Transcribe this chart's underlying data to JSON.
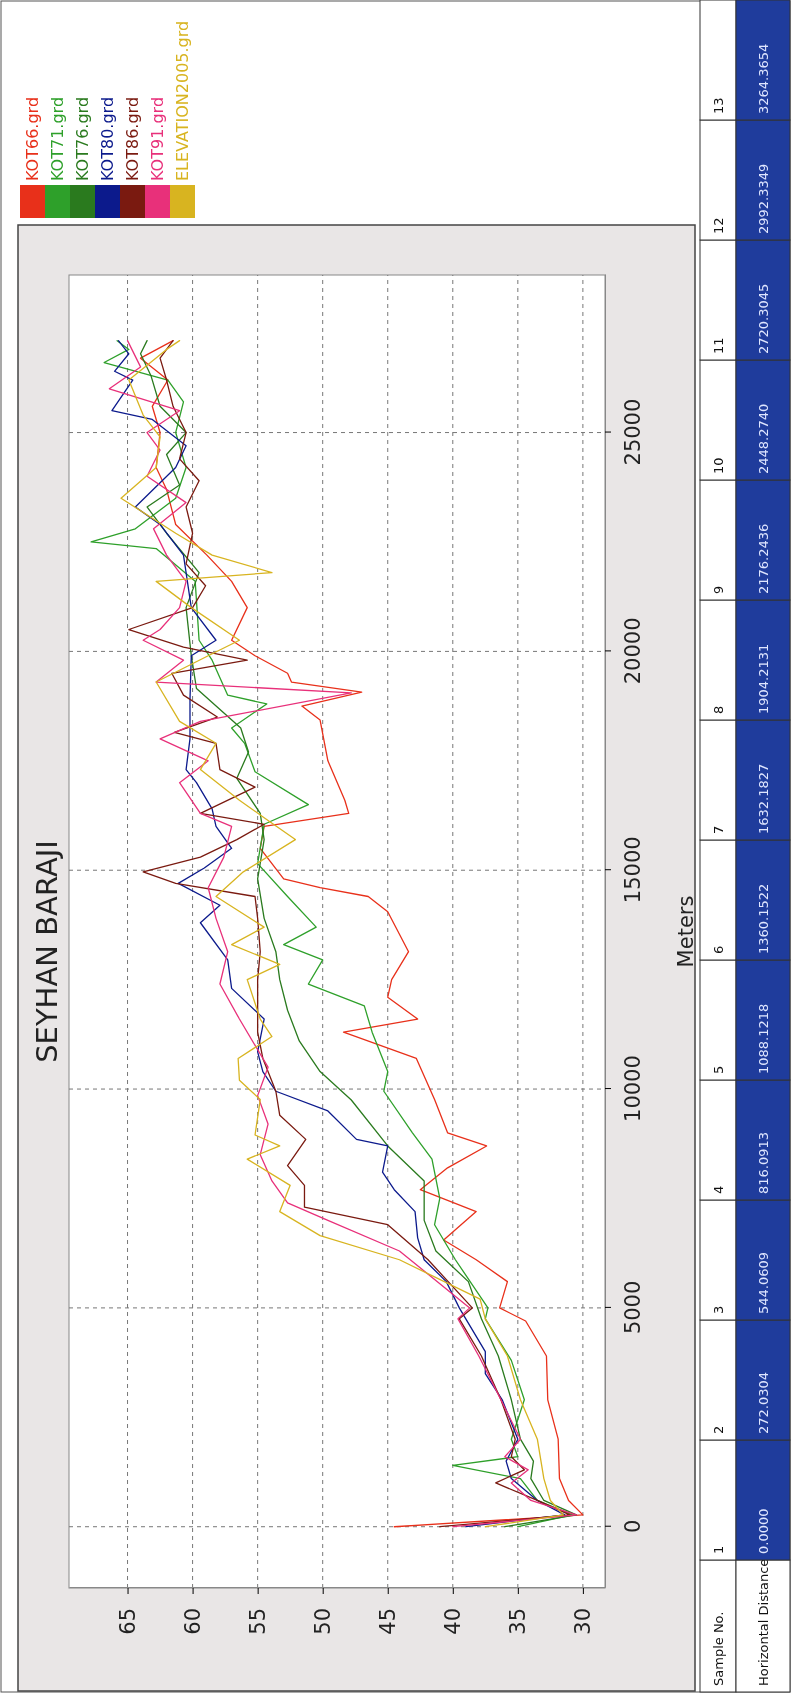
{
  "chart_data": {
    "type": "line",
    "title": "SEYHAN BARAJI",
    "ylabel": "Meters",
    "xlim": [
      69.5,
      28.3
    ],
    "ylim": [
      -1400,
      28600
    ],
    "xticks": [
      65,
      60,
      55,
      50,
      45,
      40,
      35,
      30
    ],
    "yticks": [
      0,
      5000,
      10000,
      15000,
      20000,
      25000
    ],
    "grid": true,
    "legend": "top left",
    "marker": "none",
    "line_style": "solid",
    "series": [
      {
        "name": "KOT66.grd",
        "color": "#e8301a",
        "values": [
          0,
          270,
          600,
          1100,
          2000,
          2900,
          3900,
          4700,
          5000,
          5600,
          6100,
          6550,
          7200,
          7700,
          8200,
          8700,
          9000,
          9760,
          10700,
          11300,
          11600,
          12100,
          12500,
          13139,
          14051,
          14400,
          14600,
          14800,
          15500,
          16000,
          16300,
          16600,
          17500,
          18430,
          18750,
          19070,
          19300,
          19500,
          19900,
          20255,
          21000,
          21600,
          22200,
          22900,
          23700,
          24200,
          25000,
          25600,
          26200,
          26700,
          27100
        ],
        "x": [
          44.5,
          30,
          31.1,
          31.8,
          31.9,
          32.7,
          32.8,
          34.4,
          36.4,
          35.8,
          38.2,
          40.7,
          38.2,
          42.5,
          40.4,
          37.4,
          40.4,
          41.4,
          42.8,
          48.4,
          42.7,
          45,
          44.7,
          43.4,
          45,
          46.5,
          50.2,
          53,
          54.8,
          54.5,
          48,
          48.3,
          49.6,
          50.2,
          51.6,
          47,
          52.4,
          52.7,
          55.2,
          57,
          55.8,
          57,
          58.9,
          61.3,
          62,
          62.8,
          62.5,
          63.1,
          61.9,
          64,
          61.5
        ]
      },
      {
        "name": "KOT71.grd",
        "color": "#2ea02a",
        "values": [
          0,
          270,
          600,
          1100,
          1400,
          1600,
          2000,
          2900,
          3800,
          4750,
          5000,
          6100,
          6900,
          7500,
          8400,
          9000,
          9950,
          10400,
          11300,
          11900,
          12400,
          12950,
          13300,
          13700,
          14400,
          15150,
          16050,
          16500,
          17250,
          17900,
          18250,
          18800,
          19000,
          19800,
          20255,
          21600,
          22350,
          22500,
          22800,
          23500,
          24200,
          25000,
          25700,
          26200,
          26600,
          26900,
          27100
        ],
        "x": [
          35,
          30.8,
          33.5,
          34.8,
          40,
          35,
          35.5,
          34.5,
          35.5,
          37.5,
          37.3,
          39.8,
          41.4,
          41,
          41.6,
          43.1,
          45.3,
          45,
          46.2,
          46.8,
          51.1,
          50,
          53,
          50.5,
          52.7,
          55,
          54.5,
          51.1,
          55.2,
          56,
          57,
          54.3,
          57.3,
          58.5,
          59.5,
          59.8,
          62.8,
          67.8,
          64.4,
          61.3,
          60.5,
          61.3,
          60.7,
          61.9,
          66.8,
          64.9,
          65.8
        ]
      },
      {
        "name": "KOT76.grd",
        "color": "#2a7a1e",
        "values": [
          0,
          270,
          600,
          1100,
          1500,
          2000,
          2900,
          3900,
          4750,
          5600,
          6300,
          7000,
          7900,
          8700,
          9750,
          10400,
          11100,
          11800,
          12500,
          13139,
          13900,
          14800,
          15700,
          16300,
          17100,
          17700,
          18250,
          19150,
          19900,
          21000,
          21800,
          22700,
          23300,
          23800,
          24500,
          25000,
          25600,
          26300,
          26800,
          27100
        ],
        "x": [
          36,
          30.5,
          33,
          34,
          33.8,
          34.8,
          35.5,
          36.5,
          37.8,
          38.8,
          41.3,
          42.2,
          42.2,
          45,
          47.8,
          50.2,
          51.8,
          52.7,
          53.3,
          53.6,
          54.5,
          55,
          54.5,
          54.8,
          56.6,
          55.7,
          56.3,
          59.7,
          60.1,
          60.5,
          59.5,
          62,
          63.5,
          61,
          62,
          60.5,
          62.5,
          63.2,
          64,
          63.5
        ]
      },
      {
        "name": "KOT80.grd",
        "color": "#0c1a8c",
        "values": [
          0,
          270,
          600,
          1100,
          1500,
          2000,
          2900,
          3500,
          4000,
          4750,
          5000,
          5600,
          6100,
          6600,
          7200,
          7700,
          8100,
          8700,
          8850,
          9500,
          9950,
          10400,
          10850,
          11600,
          12300,
          12950,
          13800,
          14200,
          14700,
          15050,
          15500,
          16000,
          16400,
          17000,
          17300,
          18000,
          18900,
          19900,
          20255,
          21000,
          22200,
          22900,
          23300,
          24200,
          24700,
          25300,
          25500,
          26200,
          26400,
          26800,
          27100
        ],
        "x": [
          39,
          31.4,
          33.5,
          35.5,
          35.9,
          35,
          36.2,
          37.5,
          37.5,
          39,
          39.5,
          40.5,
          42.2,
          42.7,
          42.9,
          44.5,
          45.4,
          45,
          47.4,
          49.6,
          53.6,
          54.6,
          55,
          54.5,
          57,
          57.3,
          59.4,
          57.9,
          61.1,
          59.1,
          57,
          58.2,
          58.5,
          59.7,
          60.5,
          60.2,
          60.2,
          60.1,
          58.2,
          60.1,
          60.7,
          62.5,
          64.4,
          61.3,
          60.5,
          63.1,
          66.2,
          64.6,
          66,
          64.9,
          65.7
        ]
      },
      {
        "name": "KOT86.grd",
        "color": "#7a1a10",
        "values": [
          0,
          270,
          600,
          1000,
          1300,
          1600,
          2000,
          2900,
          3900,
          4750,
          5000,
          6100,
          6900,
          7300,
          7800,
          8250,
          8850,
          9400,
          9950,
          10700,
          11300,
          12000,
          12500,
          13139,
          13900,
          14400,
          14700,
          14963,
          15300,
          15700,
          16050,
          16300,
          16900,
          17300,
          17900,
          18150,
          18500,
          19000,
          19500,
          19800,
          20100,
          20500,
          21000,
          21500,
          22000,
          22700,
          23300,
          23900,
          24400,
          25000,
          25600,
          26200,
          26700,
          27100
        ],
        "x": [
          41,
          31,
          33.5,
          36.7,
          34.5,
          35.5,
          35.2,
          36.3,
          37.8,
          39.5,
          38.5,
          41.9,
          45,
          51.4,
          51.4,
          52.7,
          51.3,
          53.3,
          53.6,
          54.6,
          55,
          55,
          55,
          54.8,
          55,
          55.2,
          61.3,
          63.8,
          59.4,
          56.6,
          54.5,
          59.4,
          55.2,
          57.9,
          58.2,
          61.4,
          58.1,
          60.7,
          61.6,
          55.8,
          60.7,
          64.9,
          60,
          59,
          60.5,
          60,
          60.5,
          59.5,
          61,
          60.5,
          61.5,
          62,
          62.5,
          61.5
        ]
      },
      {
        "name": "KOT91.grd",
        "color": "#e8307a",
        "values": [
          0,
          270,
          600,
          1000,
          1300,
          1600,
          2000,
          2900,
          3900,
          4750,
          5000,
          6300,
          7000,
          7400,
          7900,
          8500,
          9200,
          9850,
          10500,
          11600,
          12400,
          13139,
          13900,
          14600,
          15300,
          16000,
          16300,
          17000,
          17500,
          18000,
          18400,
          19050,
          19300,
          19800,
          20255,
          20500,
          21000,
          21600,
          22200,
          22800,
          23400,
          24000,
          24600,
          25000,
          25500,
          26000,
          26500,
          27100
        ],
        "x": [
          40,
          30.5,
          34,
          35.5,
          34.2,
          36,
          34.8,
          36.3,
          38,
          39.6,
          38.7,
          44.1,
          49.6,
          52.7,
          53.9,
          54.8,
          54.2,
          55,
          54.2,
          56.4,
          57.9,
          57.3,
          58.2,
          58.8,
          57.6,
          57,
          59.4,
          61,
          58.8,
          62.5,
          59.4,
          47.8,
          62.8,
          60.7,
          63.8,
          62.5,
          61,
          60.5,
          62,
          63,
          60.5,
          63.5,
          62.5,
          63.5,
          61,
          66.4,
          64,
          65
        ]
      },
      {
        "name": "ELEVATION2005.grd",
        "color": "#d8b420",
        "values": [
          0,
          270,
          600,
          1100,
          2000,
          2900,
          3900,
          4750,
          5200,
          6100,
          6650,
          7200,
          7800,
          8400,
          8700,
          8950,
          9760,
          10200,
          10700,
          11200,
          11600,
          12500,
          12850,
          13300,
          13700,
          14400,
          14963,
          15700,
          16200,
          16600,
          17300,
          17900,
          18400,
          19300,
          19900,
          20255,
          21000,
          21600,
          21800,
          22200,
          22700,
          23500,
          24200,
          24900,
          25400,
          26200,
          26900,
          27100
        ],
        "x": [
          37.5,
          31.5,
          32.5,
          33,
          33.5,
          34.8,
          35.8,
          37.5,
          37.9,
          44.1,
          50.2,
          53.3,
          52.5,
          55.8,
          53.3,
          55.2,
          54.8,
          56.4,
          56.5,
          53.9,
          54.8,
          55.8,
          53.3,
          57,
          54.5,
          58.2,
          56.1,
          52.1,
          54.5,
          56.4,
          59.4,
          58.2,
          61,
          62.8,
          58.8,
          56.4,
          60.1,
          62.8,
          53.9,
          58.5,
          61.3,
          65.5,
          62.8,
          62.5,
          63.8,
          64.9,
          62,
          61
        ]
      }
    ],
    "annotations": [
      "Sample No.",
      "1",
      "2",
      "3",
      "4",
      "5",
      "6",
      "7",
      "8",
      "9",
      "10",
      "11",
      "12",
      "13",
      "Horizontal Distance",
      "0.0000",
      "272.0304",
      "544.0609",
      "816.0913",
      "1088.1218",
      "1360.1522",
      "1632.1827",
      "1904.2131",
      "2176.2436",
      "2448.2740",
      "2720.3045",
      "2992.3349",
      "3264.3654"
    ]
  }
}
